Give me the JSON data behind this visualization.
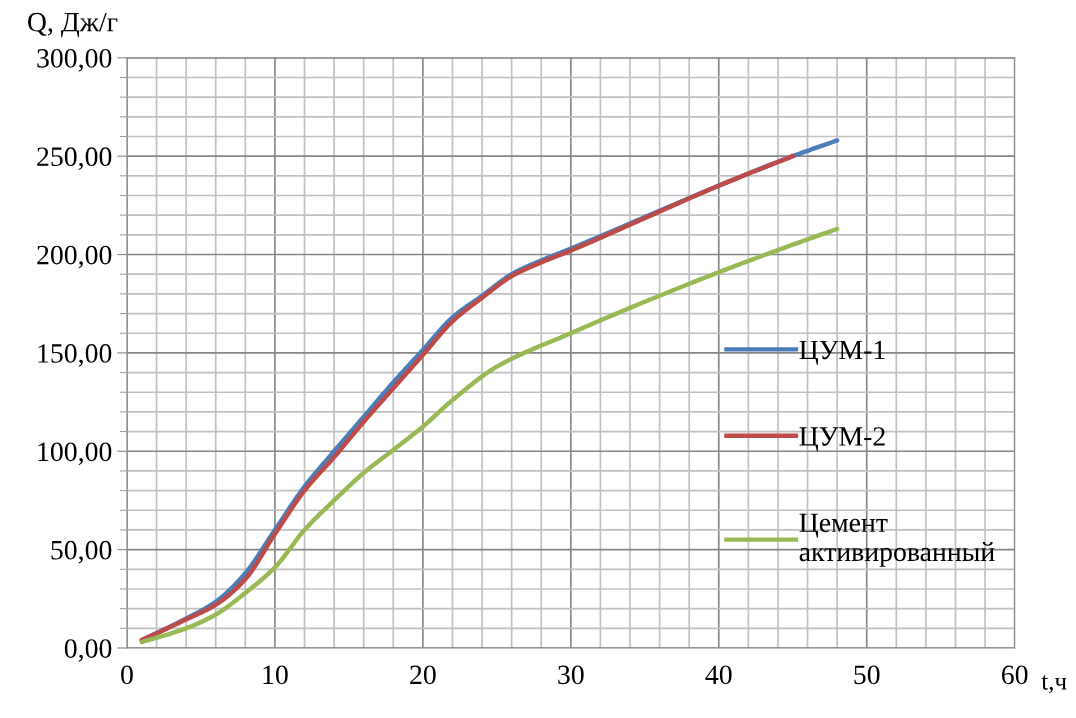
{
  "chart_data": {
    "type": "line",
    "xlabel": "t,ч",
    "ylabel": "Q, Дж/г",
    "xlim": [
      0,
      60
    ],
    "xticks": [
      0,
      10,
      20,
      30,
      40,
      50,
      60
    ],
    "ylim": [
      0,
      300
    ],
    "yticks": [
      {
        "value": 0,
        "label": "0,00"
      },
      {
        "value": 50,
        "label": "50,00"
      },
      {
        "value": 100,
        "label": "100,00"
      },
      {
        "value": 150,
        "label": "150,00"
      },
      {
        "value": 200,
        "label": "200,00"
      },
      {
        "value": 250,
        "label": "250,00"
      },
      {
        "value": 300,
        "label": "300,00"
      }
    ],
    "grid": true,
    "legend": "right",
    "marker": "none",
    "line_style": "solid",
    "series": [
      {
        "name": "ЦУМ-1",
        "color": "#4a7ebb",
        "x": [
          1,
          4,
          6,
          8,
          10,
          12,
          14,
          16,
          18,
          20,
          22,
          24,
          26,
          28,
          30,
          35,
          40,
          45,
          48
        ],
        "values": [
          4,
          15,
          23.5,
          38,
          60,
          82,
          100,
          117.5,
          135,
          151.5,
          168,
          179,
          190,
          197,
          203,
          219,
          235,
          250,
          258
        ]
      },
      {
        "name": "ЦУМ-2",
        "color": "#be4b48",
        "x": [
          1,
          4,
          6,
          8,
          10,
          12,
          14,
          16,
          18,
          20,
          22,
          24,
          26,
          28,
          30,
          35,
          40,
          45
        ],
        "values": [
          4,
          14.5,
          22,
          35,
          58,
          80,
          97,
          115,
          132,
          149,
          166,
          178,
          189,
          196,
          202,
          218.5,
          235,
          250
        ]
      },
      {
        "name": "Цемент\nактивированный",
        "color": "#98b954",
        "x": [
          1,
          4,
          6,
          8,
          10,
          12,
          14,
          16,
          18,
          20,
          22,
          25,
          30,
          35,
          40,
          45,
          48
        ],
        "values": [
          3,
          10,
          17,
          28,
          41,
          60,
          75,
          89,
          100.7,
          112.5,
          126,
          143,
          160,
          176,
          191,
          205,
          213
        ]
      }
    ]
  }
}
